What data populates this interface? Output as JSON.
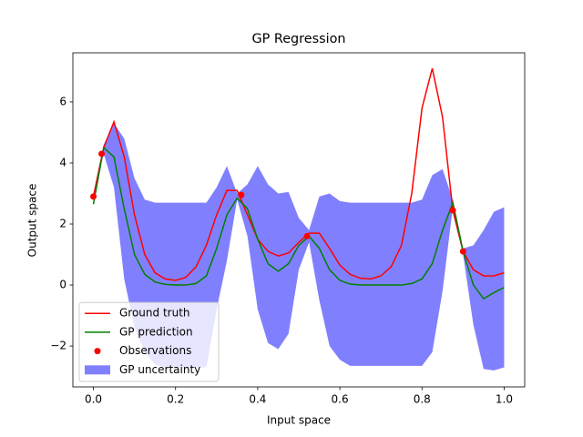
{
  "chart_data": {
    "type": "line",
    "title": "GP Regression",
    "x_label": "Input space",
    "y_label": "Output space",
    "xlim": [
      -0.05,
      1.05
    ],
    "ylim": [
      -3.34,
      7.61
    ],
    "xticks": [
      {
        "value": 0,
        "label": "0.0"
      },
      0.2,
      0.4,
      0.6,
      0.8,
      {
        "value": 1,
        "label": "1.0"
      }
    ],
    "yticks": [
      {
        "value": -2,
        "label": "−2"
      },
      0,
      2,
      4,
      6
    ],
    "legend": "lower left",
    "x": [
      0,
      0.025,
      0.05,
      0.075,
      0.1,
      0.125,
      0.15,
      0.175,
      0.2,
      0.225,
      0.25,
      0.275,
      0.3,
      0.325,
      0.35,
      0.375,
      0.4,
      0.425,
      0.45,
      0.475,
      0.5,
      0.525,
      0.55,
      0.575,
      0.6,
      0.625,
      0.65,
      0.675,
      0.7,
      0.725,
      0.75,
      0.775,
      0.8,
      0.825,
      0.85,
      0.875,
      0.9,
      0.925,
      0.95,
      0.975,
      1
    ],
    "series": [
      {
        "name": "Ground truth",
        "type": "line",
        "color": "#ff0000",
        "values": [
          2.9,
          4.5,
          5.35,
          4.2,
          2.3,
          1.0,
          0.4,
          0.2,
          0.15,
          0.25,
          0.6,
          1.3,
          2.3,
          3.1,
          3.1,
          2.3,
          1.5,
          1.1,
          0.95,
          1.05,
          1.4,
          1.7,
          1.7,
          1.2,
          0.65,
          0.35,
          0.22,
          0.2,
          0.3,
          0.6,
          1.3,
          3.0,
          5.8,
          7.1,
          5.5,
          2.45,
          1.1,
          0.5,
          0.3,
          0.3,
          0.4
        ]
      },
      {
        "name": "GP prediction",
        "type": "line",
        "color": "#008000",
        "values": [
          2.65,
          4.5,
          4.2,
          2.5,
          1.0,
          0.35,
          0.1,
          0.02,
          0.0,
          0.0,
          0.05,
          0.3,
          1.2,
          2.3,
          2.85,
          2.5,
          1.5,
          0.7,
          0.45,
          0.7,
          1.3,
          1.6,
          1.2,
          0.5,
          0.15,
          0.03,
          0.0,
          0.0,
          0.0,
          0.0,
          0.0,
          0.05,
          0.2,
          0.7,
          1.8,
          2.7,
          1.1,
          0.0,
          -0.45,
          -0.25,
          -0.08
        ]
      },
      {
        "name": "Observations",
        "type": "scatter",
        "color": "#ff0000",
        "x": [
          0,
          0.02,
          0.36,
          0.52,
          0.875,
          0.9
        ],
        "values": [
          2.9,
          4.3,
          2.95,
          1.6,
          2.45,
          1.1
        ]
      },
      {
        "name": "GP uncertainty",
        "type": "band",
        "color": "#8080ff",
        "upper": [
          3.0,
          4.6,
          5.3,
          4.8,
          3.5,
          2.8,
          2.7,
          2.7,
          2.7,
          2.7,
          2.7,
          2.7,
          3.2,
          3.9,
          3.0,
          3.3,
          3.9,
          3.3,
          3.0,
          3.05,
          2.2,
          1.8,
          2.9,
          3.0,
          2.75,
          2.7,
          2.7,
          2.7,
          2.7,
          2.7,
          2.7,
          2.7,
          2.8,
          3.6,
          3.8,
          2.8,
          1.2,
          1.3,
          1.8,
          2.4,
          2.55
        ],
        "lower": [
          2.9,
          4.3,
          3.2,
          0.2,
          -1.4,
          -2.2,
          -2.6,
          -2.7,
          -2.7,
          -2.7,
          -2.7,
          -2.7,
          -0.8,
          0.8,
          2.8,
          1.6,
          -0.8,
          -1.9,
          -2.1,
          -1.6,
          0.5,
          1.4,
          -0.5,
          -2.0,
          -2.45,
          -2.65,
          -2.65,
          -2.65,
          -2.65,
          -2.65,
          -2.65,
          -2.65,
          -2.65,
          -2.2,
          -0.2,
          2.55,
          1.0,
          -1.3,
          -2.75,
          -2.8,
          -2.7
        ]
      }
    ]
  }
}
